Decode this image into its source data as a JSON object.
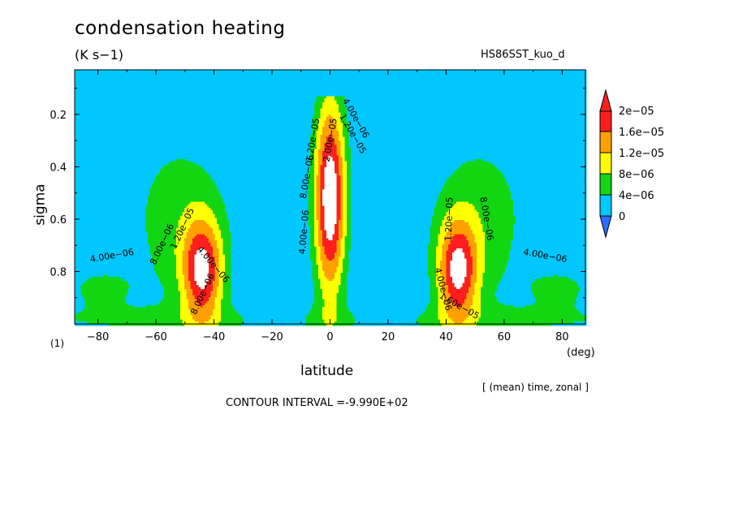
{
  "title": "condensation heating",
  "units": "(K s−1)",
  "dataset": "HS86SST_kuo_d",
  "panel_label": "(1)",
  "average_note": "[ (mean) time, zonal ]",
  "contour_interval": "CONTOUR INTERVAL =-9.990E+02",
  "chart_data": {
    "type": "heatmap",
    "title": "condensation heating",
    "xlabel": "latitude",
    "xunit": "(deg)",
    "ylabel": "sigma",
    "xlim": [
      -88,
      88
    ],
    "ylim": [
      1.0,
      0.03
    ],
    "x_ticks": [
      -80,
      -60,
      -40,
      -20,
      0,
      20,
      40,
      60,
      80
    ],
    "x_tick_labels": [
      "−80",
      "−60",
      "−40",
      "−20",
      "0",
      "20",
      "40",
      "60",
      "80"
    ],
    "y_ticks": [
      0.2,
      0.4,
      0.6,
      0.8
    ],
    "y_tick_labels": [
      "0.2",
      "0.4",
      "0.6",
      "0.8"
    ],
    "colorbar": {
      "levels": [
        0,
        4e-06,
        8e-06,
        1.2e-05,
        1.6e-05,
        2e-05
      ],
      "labels": [
        "0",
        "4e−06",
        "8e−06",
        "1.2e−05",
        "1.6e−05",
        "2e−05"
      ],
      "colors": [
        "#2a6cff",
        "#00c8ff",
        "#12d612",
        "#ffff00",
        "#ffa000",
        "#ff1e1e",
        "#ffffff"
      ]
    },
    "contour_labels": [
      {
        "text": "4.00e−06",
        "lat": -75,
        "sigma": 0.75,
        "angle": -10
      },
      {
        "text": "8.00e−06",
        "lat": -57,
        "sigma": 0.7,
        "angle": -65
      },
      {
        "text": "1.20e−05",
        "lat": -50,
        "sigma": 0.64,
        "angle": -65
      },
      {
        "text": "8.00e−06",
        "lat": -43,
        "sigma": 0.89,
        "angle": -65
      },
      {
        "text": "4.00e−06",
        "lat": -41,
        "sigma": 0.78,
        "angle": 50
      },
      {
        "text": "4.00e−06",
        "lat": -8,
        "sigma": 0.65,
        "angle": -85
      },
      {
        "text": "8.00e−06",
        "lat": -7,
        "sigma": 0.44,
        "angle": -80
      },
      {
        "text": "1.20e−05",
        "lat": -5,
        "sigma": 0.3,
        "angle": -80
      },
      {
        "text": "2.00e−05",
        "lat": 1,
        "sigma": 0.3,
        "angle": -80
      },
      {
        "text": "4.00e−06",
        "lat": 8,
        "sigma": 0.22,
        "angle": 60
      },
      {
        "text": "1.20e−05",
        "lat": 7,
        "sigma": 0.28,
        "angle": 60
      },
      {
        "text": "1.20e−05",
        "lat": 42,
        "sigma": 0.6,
        "angle": -88
      },
      {
        "text": "8.00e−06",
        "lat": 53,
        "sigma": 0.6,
        "angle": 80
      },
      {
        "text": "4.00e−06",
        "lat": 74,
        "sigma": 0.75,
        "angle": 10
      },
      {
        "text": "4.00e−06",
        "lat": 38,
        "sigma": 0.87,
        "angle": 75
      },
      {
        "text": "1.60e−05",
        "lat": 44,
        "sigma": 0.94,
        "angle": 30
      }
    ]
  }
}
